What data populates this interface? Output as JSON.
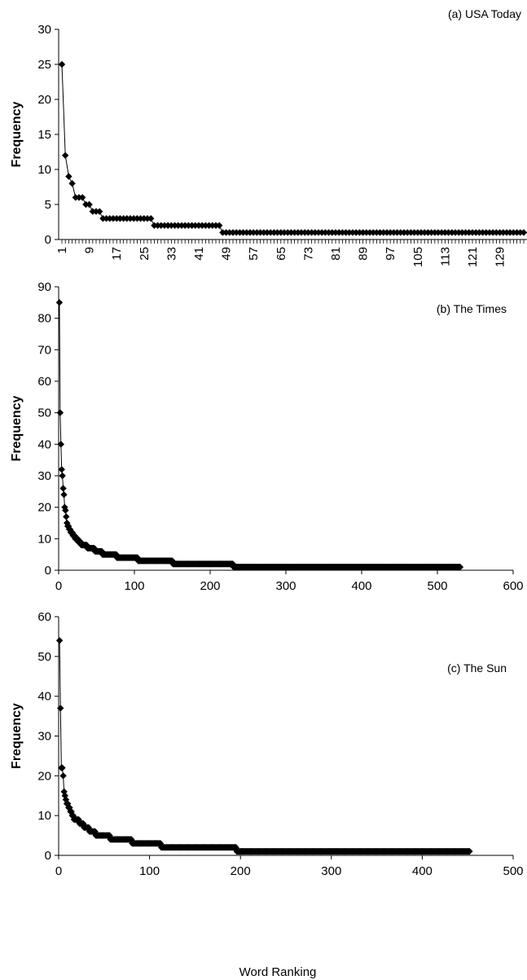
{
  "chart_data": [
    {
      "type": "line",
      "title": "(a) USA Today",
      "ylabel": "Frequency",
      "xlabel": "",
      "ylim": [
        0,
        30
      ],
      "yticks": [
        0,
        5,
        10,
        15,
        20,
        25,
        30
      ],
      "xlim": [
        1,
        136
      ],
      "xtick_labels": [
        "1",
        "9",
        "17",
        "25",
        "33",
        "41",
        "49",
        "57",
        "65",
        "73",
        "81",
        "89",
        "97",
        "105",
        "113",
        "121",
        "129"
      ],
      "marker": "diamond",
      "series": [
        {
          "steps": [
            {
              "from": 1,
              "to": 1,
              "y": 25
            },
            {
              "from": 2,
              "to": 2,
              "y": 12
            },
            {
              "from": 3,
              "to": 3,
              "y": 9
            },
            {
              "from": 4,
              "to": 4,
              "y": 8
            },
            {
              "from": 5,
              "to": 7,
              "y": 6
            },
            {
              "from": 8,
              "to": 9,
              "y": 5
            },
            {
              "from": 10,
              "to": 12,
              "y": 4
            },
            {
              "from": 13,
              "to": 27,
              "y": 3
            },
            {
              "from": 28,
              "to": 47,
              "y": 2
            },
            {
              "from": 48,
              "to": 136,
              "y": 1
            }
          ]
        }
      ]
    },
    {
      "type": "line",
      "title": "(b) The Times",
      "ylabel": "Frequency",
      "xlabel": "",
      "ylim": [
        0,
        90
      ],
      "yticks": [
        0,
        10,
        20,
        30,
        40,
        50,
        60,
        70,
        80,
        90
      ],
      "xlim": [
        0,
        600
      ],
      "xticks": [
        0,
        100,
        200,
        300,
        400,
        500,
        600
      ],
      "marker": "diamond",
      "series": [
        {
          "steps": [
            {
              "from": 1,
              "to": 1,
              "y": 85
            },
            {
              "from": 2,
              "to": 2,
              "y": 50
            },
            {
              "from": 3,
              "to": 3,
              "y": 40
            },
            {
              "from": 4,
              "to": 4,
              "y": 32
            },
            {
              "from": 5,
              "to": 5,
              "y": 30
            },
            {
              "from": 6,
              "to": 6,
              "y": 26
            },
            {
              "from": 7,
              "to": 7,
              "y": 24
            },
            {
              "from": 8,
              "to": 8,
              "y": 20
            },
            {
              "from": 9,
              "to": 9,
              "y": 19
            },
            {
              "from": 10,
              "to": 10,
              "y": 17
            },
            {
              "from": 11,
              "to": 11,
              "y": 15
            },
            {
              "from": 12,
              "to": 13,
              "y": 14
            },
            {
              "from": 14,
              "to": 15,
              "y": 13
            },
            {
              "from": 16,
              "to": 18,
              "y": 12
            },
            {
              "from": 19,
              "to": 21,
              "y": 11
            },
            {
              "from": 22,
              "to": 25,
              "y": 10
            },
            {
              "from": 26,
              "to": 29,
              "y": 9
            },
            {
              "from": 30,
              "to": 37,
              "y": 8
            },
            {
              "from": 38,
              "to": 47,
              "y": 7
            },
            {
              "from": 48,
              "to": 57,
              "y": 6
            },
            {
              "from": 58,
              "to": 76,
              "y": 5
            },
            {
              "from": 77,
              "to": 104,
              "y": 4
            },
            {
              "from": 105,
              "to": 150,
              "y": 3
            },
            {
              "from": 151,
              "to": 230,
              "y": 2
            },
            {
              "from": 231,
              "to": 530,
              "y": 1
            }
          ]
        }
      ]
    },
    {
      "type": "line",
      "title": "(c) The Sun",
      "ylabel": "Frequency",
      "xlabel": "Word Ranking",
      "ylim": [
        0,
        60
      ],
      "yticks": [
        0,
        10,
        20,
        30,
        40,
        50,
        60
      ],
      "xlim": [
        0,
        500
      ],
      "xticks": [
        0,
        100,
        200,
        300,
        400,
        500
      ],
      "marker": "diamond",
      "series": [
        {
          "steps": [
            {
              "from": 1,
              "to": 1,
              "y": 54
            },
            {
              "from": 2,
              "to": 2,
              "y": 37
            },
            {
              "from": 3,
              "to": 3,
              "y": 22
            },
            {
              "from": 4,
              "to": 4,
              "y": 22
            },
            {
              "from": 5,
              "to": 5,
              "y": 20
            },
            {
              "from": 6,
              "to": 6,
              "y": 16
            },
            {
              "from": 7,
              "to": 7,
              "y": 15
            },
            {
              "from": 8,
              "to": 8,
              "y": 14
            },
            {
              "from": 9,
              "to": 10,
              "y": 13
            },
            {
              "from": 11,
              "to": 12,
              "y": 12
            },
            {
              "from": 13,
              "to": 14,
              "y": 11
            },
            {
              "from": 15,
              "to": 16,
              "y": 10
            },
            {
              "from": 17,
              "to": 22,
              "y": 9
            },
            {
              "from": 23,
              "to": 27,
              "y": 8
            },
            {
              "from": 28,
              "to": 33,
              "y": 7
            },
            {
              "from": 34,
              "to": 40,
              "y": 6
            },
            {
              "from": 41,
              "to": 56,
              "y": 5
            },
            {
              "from": 57,
              "to": 80,
              "y": 4
            },
            {
              "from": 81,
              "to": 112,
              "y": 3
            },
            {
              "from": 113,
              "to": 195,
              "y": 2
            },
            {
              "from": 196,
              "to": 452,
              "y": 1
            }
          ]
        }
      ]
    }
  ]
}
